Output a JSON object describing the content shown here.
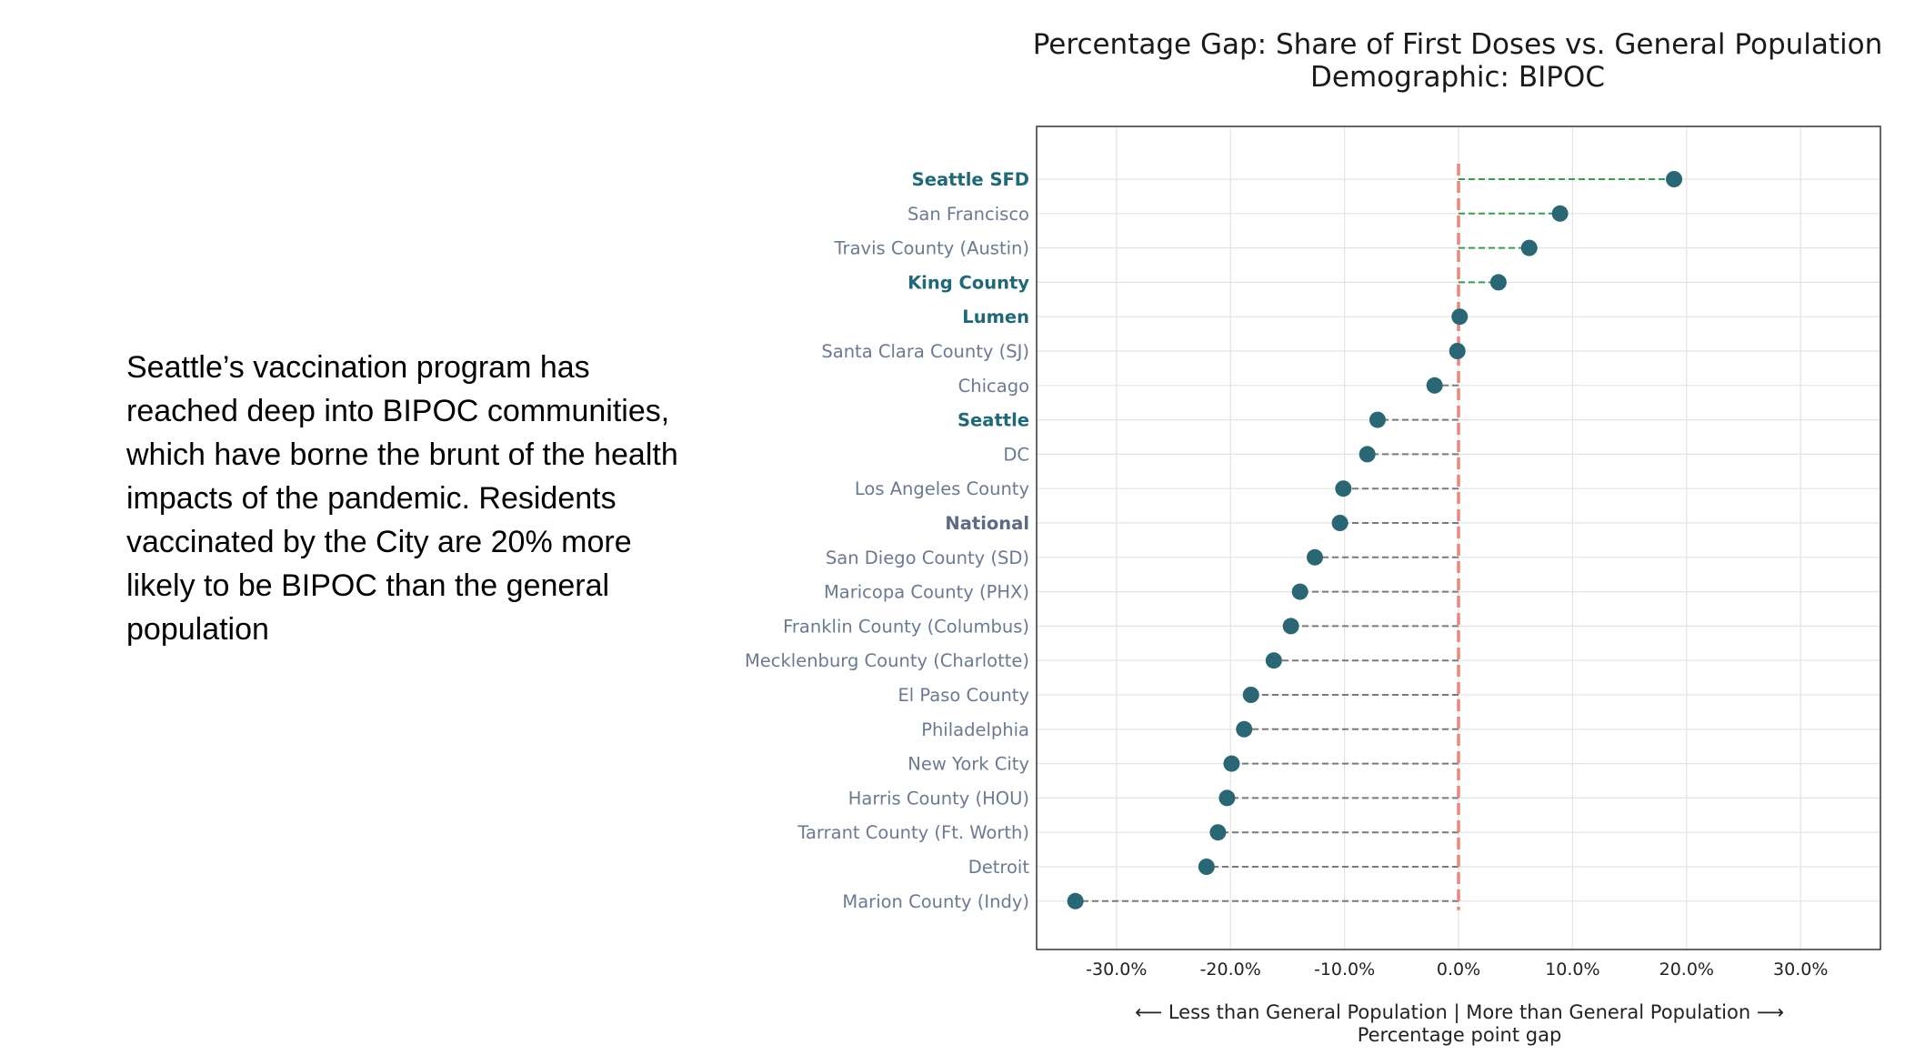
{
  "caption": "Seattle’s vaccination program has reached deep into BIPOC communities, which have borne the brunt of the health impacts of the pandemic. Residents vaccinated by the City are 20% more likely to be BIPOC than the general population",
  "colors": {
    "dot": "#2a6775",
    "positive_line": "#3a9c52",
    "negative_line": "#7a7a7a",
    "zero_line": "#e8877d",
    "highlight_label": "#1f6878",
    "label": "#6b7a92",
    "grid": "#e3e3e3"
  },
  "chart_data": {
    "type": "lollipop",
    "title": "Percentage Gap: Share of First Doses vs. General Population",
    "subtitle": "Demographic: BIPOC",
    "xlabel_line1": "⟵ Less than General Population  |  More than General Population ⟶",
    "xlabel_line2": "Percentage point gap",
    "xlim": [
      -37,
      37
    ],
    "xticks": [
      -30,
      -20,
      -10,
      0,
      10,
      20,
      30
    ],
    "xtick_labels": [
      "-30.0%",
      "-20.0%",
      "-10.0%",
      "0.0%",
      "10.0%",
      "20.0%",
      "30.0%"
    ],
    "reference_line": 0,
    "categories": [
      "Seattle SFD",
      "San Francisco",
      "Travis County (Austin)",
      "King County",
      "Lumen",
      "Santa Clara County (SJ)",
      "Chicago",
      "Seattle",
      "DC",
      "Los Angeles County",
      "National",
      "San Diego County (SD)",
      "Maricopa County (PHX)",
      "Franklin County (Columbus)",
      "Mecklenburg County (Charlotte)",
      "El Paso County",
      "Philadelphia",
      "New York City",
      "Harris County (HOU)",
      "Tarrant County (Ft. Worth)",
      "Detroit",
      "Marion County (Indy)"
    ],
    "values": [
      18.9,
      8.9,
      6.2,
      3.5,
      0.1,
      -0.1,
      -2.1,
      -7.1,
      -8.0,
      -10.1,
      -10.4,
      -12.6,
      -13.9,
      -14.7,
      -16.2,
      -18.2,
      -18.8,
      -19.9,
      -20.3,
      -21.1,
      -22.1,
      -33.6
    ],
    "highlighted": [
      "Seattle SFD",
      "King County",
      "Lumen",
      "Seattle"
    ],
    "national": "National"
  }
}
